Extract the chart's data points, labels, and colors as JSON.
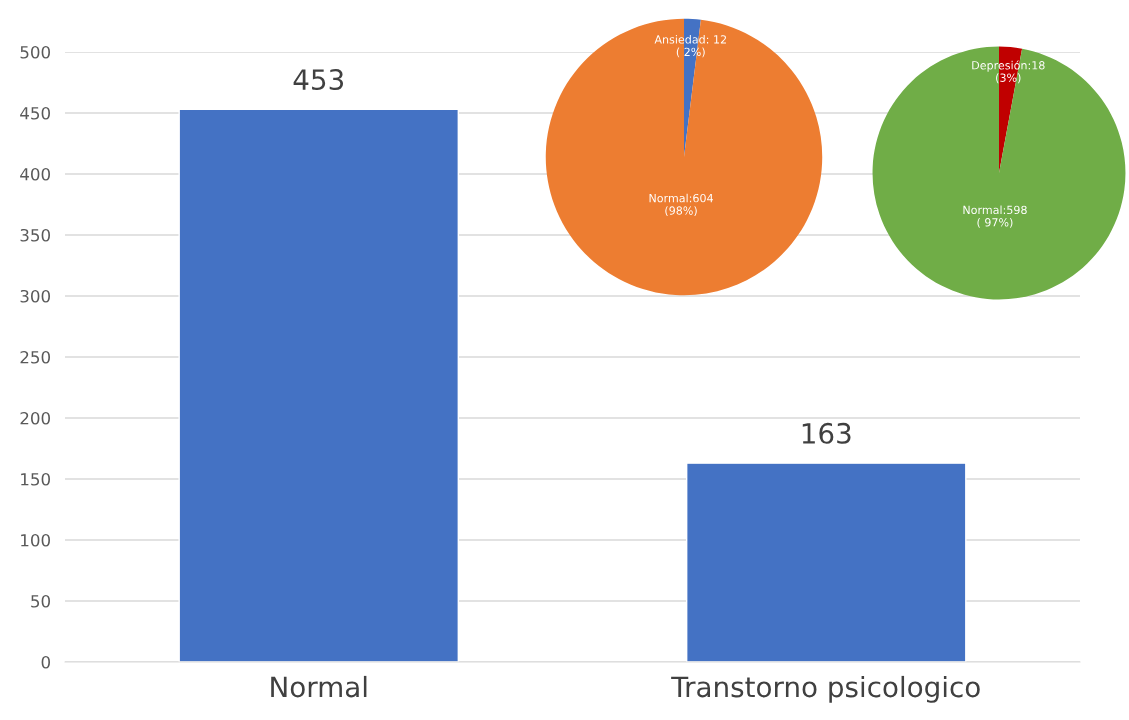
{
  "chart_data": [
    {
      "type": "bar",
      "categories": [
        "Normal",
        "Transtorno psicologico"
      ],
      "values": [
        453,
        163
      ],
      "color": "#4472c4",
      "ylim": [
        0,
        500
      ],
      "yticks": [
        0,
        50,
        100,
        150,
        200,
        250,
        300,
        350,
        400,
        450,
        500
      ],
      "grid": "y",
      "data_labels": true
    },
    {
      "type": "pie",
      "categories": [
        "Ansiedad",
        "Normal"
      ],
      "values": [
        12,
        604
      ],
      "colors": [
        "#4472c4",
        "#ed7d31"
      ],
      "value_labels": [
        ": 12\n( 2%)",
        ":604\n(98%)"
      ]
    },
    {
      "type": "pie",
      "categories": [
        "Depresión",
        "Normal"
      ],
      "values": [
        18,
        598
      ],
      "colors": [
        "#c00000",
        "#70ad47"
      ],
      "value_labels": [
        ":18\n(3%)",
        ":598\n( 97%)"
      ]
    }
  ]
}
